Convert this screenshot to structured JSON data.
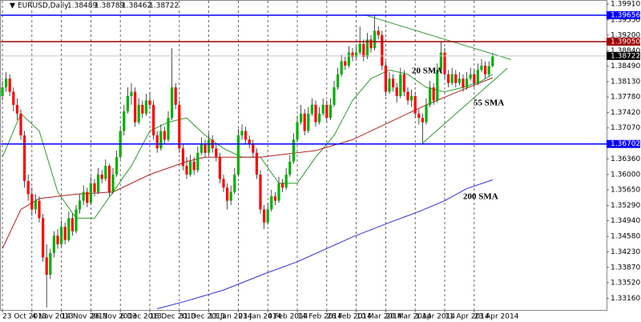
{
  "chart_data": {
    "type": "candlestick",
    "symbol": "EURUSD,Daily",
    "up_color": "#00b000",
    "down_color": "#ff0000",
    "ylim": [
      1.32893,
      1.39987
    ],
    "yticks": [
      {
        "value": 1.3991,
        "label": "1.39910"
      },
      {
        "value": 1.3955,
        "label": "1.39550"
      },
      {
        "value": 1.392,
        "label": "1.39200"
      },
      {
        "value": 1.3884,
        "label": "1.38840"
      },
      {
        "value": 1.3849,
        "label": "1.38490"
      },
      {
        "value": 1.3813,
        "label": "1.38130"
      },
      {
        "value": 1.3778,
        "label": "1.37780"
      },
      {
        "value": 1.3742,
        "label": "1.37420"
      },
      {
        "value": 1.3707,
        "label": "1.37070"
      },
      {
        "value": 1.3636,
        "label": "1.36360"
      },
      {
        "value": 1.36,
        "label": "1.36000"
      },
      {
        "value": 1.3565,
        "label": "1.35650"
      },
      {
        "value": 1.3529,
        "label": "1.35290"
      },
      {
        "value": 1.3494,
        "label": "1.34940"
      },
      {
        "value": 1.3458,
        "label": "1.34580"
      },
      {
        "value": 1.3423,
        "label": "1.34230"
      },
      {
        "value": 1.3387,
        "label": "1.33870"
      },
      {
        "value": 1.3352,
        "label": "1.33520"
      },
      {
        "value": 1.3316,
        "label": "1.33160"
      }
    ],
    "xticks": [
      {
        "value": 0,
        "label": "23 Oct 2013"
      },
      {
        "value": 8,
        "label": "4 Nov 2013"
      },
      {
        "value": 16,
        "label": "14 Nov 2013"
      },
      {
        "value": 24,
        "label": "26 Nov 2013"
      },
      {
        "value": 32,
        "label": "6 Dec 2013"
      },
      {
        "value": 40,
        "label": "18 Dec 2013"
      },
      {
        "value": 48,
        "label": "31 Dec 2013"
      },
      {
        "value": 56,
        "label": "13 Jan 2014"
      },
      {
        "value": 64,
        "label": "23 Jan 2014"
      },
      {
        "value": 72,
        "label": "4 Feb 2014"
      },
      {
        "value": 80,
        "label": "14 Feb 2014"
      },
      {
        "value": 88,
        "label": "26 Feb 2014"
      },
      {
        "value": 96,
        "label": "10 Mar 2014"
      },
      {
        "value": 104,
        "label": "20 Mar 2014"
      },
      {
        "value": 112,
        "label": "1 Apr 2014"
      },
      {
        "value": 120,
        "label": "11 Apr 2014"
      },
      {
        "value": 128,
        "label": "23 Apr 2014"
      }
    ],
    "ohlc": [
      [
        1.378,
        1.3815,
        1.377,
        1.38
      ],
      [
        1.38,
        1.3835,
        1.379,
        1.382
      ],
      [
        1.382,
        1.383,
        1.378,
        1.379
      ],
      [
        1.379,
        1.38,
        1.3745,
        1.376
      ],
      [
        1.376,
        1.3775,
        1.3725,
        1.374
      ],
      [
        1.374,
        1.375,
        1.368,
        1.369
      ],
      [
        1.369,
        1.37,
        1.357,
        1.3585
      ],
      [
        1.3585,
        1.36,
        1.354,
        1.3555
      ],
      [
        1.3555,
        1.357,
        1.3505,
        1.352
      ],
      [
        1.352,
        1.3555,
        1.351,
        1.354
      ],
      [
        1.354,
        1.355,
        1.349,
        1.35
      ],
      [
        1.35,
        1.351,
        1.34,
        1.341
      ],
      [
        1.341,
        1.344,
        1.3295,
        1.337
      ],
      [
        1.337,
        1.343,
        1.336,
        1.342
      ],
      [
        1.342,
        1.347,
        1.341,
        1.346
      ],
      [
        1.346,
        1.3475,
        1.343,
        1.344
      ],
      [
        1.344,
        1.3495,
        1.3435,
        1.348
      ],
      [
        1.348,
        1.349,
        1.344,
        1.345
      ],
      [
        1.345,
        1.3515,
        1.3445,
        1.35
      ],
      [
        1.35,
        1.351,
        1.346,
        1.347
      ],
      [
        1.347,
        1.353,
        1.3465,
        1.352
      ],
      [
        1.352,
        1.3555,
        1.351,
        1.354
      ],
      [
        1.354,
        1.3575,
        1.353,
        1.356
      ],
      [
        1.356,
        1.357,
        1.3525,
        1.3535
      ],
      [
        1.3535,
        1.3595,
        1.353,
        1.358
      ],
      [
        1.358,
        1.359,
        1.355,
        1.356
      ],
      [
        1.356,
        1.3615,
        1.3555,
        1.36
      ],
      [
        1.36,
        1.361,
        1.358,
        1.359
      ],
      [
        1.359,
        1.3635,
        1.3585,
        1.362
      ],
      [
        1.362,
        1.3625,
        1.355,
        1.356
      ],
      [
        1.356,
        1.3615,
        1.3555,
        1.36
      ],
      [
        1.36,
        1.3655,
        1.3595,
        1.364
      ],
      [
        1.364,
        1.371,
        1.3635,
        1.37
      ],
      [
        1.37,
        1.376,
        1.369,
        1.3745
      ],
      [
        1.3745,
        1.38,
        1.374,
        1.378
      ],
      [
        1.378,
        1.381,
        1.376,
        1.379
      ],
      [
        1.379,
        1.38,
        1.371,
        1.372
      ],
      [
        1.372,
        1.3775,
        1.3715,
        1.376
      ],
      [
        1.376,
        1.377,
        1.373,
        1.374
      ],
      [
        1.374,
        1.3785,
        1.3735,
        1.377
      ],
      [
        1.377,
        1.379,
        1.375,
        1.376
      ],
      [
        1.376,
        1.377,
        1.368,
        1.369
      ],
      [
        1.369,
        1.37,
        1.365,
        1.366
      ],
      [
        1.366,
        1.3715,
        1.3655,
        1.37
      ],
      [
        1.37,
        1.371,
        1.367,
        1.368
      ],
      [
        1.368,
        1.3745,
        1.3675,
        1.373
      ],
      [
        1.373,
        1.389,
        1.3725,
        1.38
      ],
      [
        1.38,
        1.381,
        1.375,
        1.376
      ],
      [
        1.376,
        1.377,
        1.365,
        1.366
      ],
      [
        1.366,
        1.367,
        1.361,
        1.362
      ],
      [
        1.362,
        1.364,
        1.359,
        1.36
      ],
      [
        1.36,
        1.3645,
        1.3595,
        1.363
      ],
      [
        1.363,
        1.364,
        1.36,
        1.361
      ],
      [
        1.361,
        1.3665,
        1.3605,
        1.365
      ],
      [
        1.365,
        1.3685,
        1.3645,
        1.367
      ],
      [
        1.367,
        1.368,
        1.364,
        1.365
      ],
      [
        1.365,
        1.3695,
        1.3645,
        1.368
      ],
      [
        1.368,
        1.369,
        1.365,
        1.366
      ],
      [
        1.366,
        1.367,
        1.363,
        1.364
      ],
      [
        1.364,
        1.365,
        1.358,
        1.359
      ],
      [
        1.359,
        1.36,
        1.356,
        1.357
      ],
      [
        1.357,
        1.358,
        1.352,
        1.354
      ],
      [
        1.354,
        1.3575,
        1.353,
        1.356
      ],
      [
        1.356,
        1.3615,
        1.3555,
        1.36
      ],
      [
        1.36,
        1.3705,
        1.3595,
        1.369
      ],
      [
        1.369,
        1.3715,
        1.368,
        1.37
      ],
      [
        1.37,
        1.371,
        1.367,
        1.368
      ],
      [
        1.368,
        1.369,
        1.366,
        1.367
      ],
      [
        1.367,
        1.368,
        1.364,
        1.365
      ],
      [
        1.365,
        1.366,
        1.359,
        1.36
      ],
      [
        1.36,
        1.361,
        1.351,
        1.352
      ],
      [
        1.352,
        1.353,
        1.3475,
        1.349
      ],
      [
        1.349,
        1.3535,
        1.3485,
        1.352
      ],
      [
        1.352,
        1.3565,
        1.3515,
        1.355
      ],
      [
        1.355,
        1.356,
        1.353,
        1.354
      ],
      [
        1.354,
        1.3595,
        1.3535,
        1.358
      ],
      [
        1.358,
        1.359,
        1.356,
        1.357
      ],
      [
        1.357,
        1.3615,
        1.3565,
        1.36
      ],
      [
        1.36,
        1.3645,
        1.3595,
        1.363
      ],
      [
        1.363,
        1.3695,
        1.3625,
        1.368
      ],
      [
        1.368,
        1.3735,
        1.3675,
        1.372
      ],
      [
        1.372,
        1.376,
        1.3715,
        1.374
      ],
      [
        1.374,
        1.375,
        1.369,
        1.37
      ],
      [
        1.37,
        1.3755,
        1.3695,
        1.374
      ],
      [
        1.374,
        1.3775,
        1.3735,
        1.376
      ],
      [
        1.376,
        1.377,
        1.371,
        1.372
      ],
      [
        1.372,
        1.3755,
        1.3715,
        1.374
      ],
      [
        1.374,
        1.3775,
        1.3735,
        1.376
      ],
      [
        1.376,
        1.377,
        1.372,
        1.373
      ],
      [
        1.373,
        1.3775,
        1.3725,
        1.376
      ],
      [
        1.376,
        1.3815,
        1.3755,
        1.38
      ],
      [
        1.38,
        1.3845,
        1.3795,
        1.383
      ],
      [
        1.383,
        1.3875,
        1.3825,
        1.386
      ],
      [
        1.386,
        1.387,
        1.384,
        1.385
      ],
      [
        1.385,
        1.3895,
        1.3845,
        1.388
      ],
      [
        1.388,
        1.389,
        1.386,
        1.387
      ],
      [
        1.387,
        1.3895,
        1.3865,
        1.388
      ],
      [
        1.388,
        1.394,
        1.3875,
        1.39
      ],
      [
        1.39,
        1.391,
        1.386,
        1.387
      ],
      [
        1.387,
        1.3925,
        1.3865,
        1.391
      ],
      [
        1.391,
        1.392,
        1.388,
        1.389
      ],
      [
        1.389,
        1.3967,
        1.3885,
        1.393
      ],
      [
        1.393,
        1.394,
        1.391,
        1.392
      ],
      [
        1.392,
        1.393,
        1.384,
        1.385
      ],
      [
        1.385,
        1.386,
        1.378,
        1.379
      ],
      [
        1.379,
        1.3835,
        1.3785,
        1.382
      ],
      [
        1.382,
        1.383,
        1.379,
        1.38
      ],
      [
        1.38,
        1.381,
        1.3765,
        1.378
      ],
      [
        1.378,
        1.3845,
        1.3775,
        1.383
      ],
      [
        1.383,
        1.384,
        1.378,
        1.379
      ],
      [
        1.379,
        1.38,
        1.376,
        1.377
      ],
      [
        1.377,
        1.3795,
        1.3755,
        1.378
      ],
      [
        1.378,
        1.379,
        1.373,
        1.374
      ],
      [
        1.374,
        1.375,
        1.3715,
        1.373
      ],
      [
        1.373,
        1.374,
        1.3672,
        1.372
      ],
      [
        1.372,
        1.3775,
        1.3715,
        1.376
      ],
      [
        1.376,
        1.3815,
        1.3755,
        1.38
      ],
      [
        1.38,
        1.381,
        1.376,
        1.377
      ],
      [
        1.377,
        1.3855,
        1.3765,
        1.384
      ],
      [
        1.384,
        1.3905,
        1.3835,
        1.388
      ],
      [
        1.388,
        1.389,
        1.382,
        1.383
      ],
      [
        1.383,
        1.384,
        1.38,
        1.381
      ],
      [
        1.381,
        1.3845,
        1.3805,
        1.383
      ],
      [
        1.383,
        1.384,
        1.38,
        1.381
      ],
      [
        1.381,
        1.3835,
        1.3805,
        1.382
      ],
      [
        1.382,
        1.383,
        1.379,
        1.38
      ],
      [
        1.38,
        1.3835,
        1.3795,
        1.382
      ],
      [
        1.382,
        1.3845,
        1.3815,
        1.383
      ],
      [
        1.383,
        1.384,
        1.38,
        1.381
      ],
      [
        1.381,
        1.3855,
        1.3805,
        1.384
      ],
      [
        1.384,
        1.3865,
        1.3835,
        1.385
      ],
      [
        1.385,
        1.386,
        1.382,
        1.383
      ],
      [
        1.383,
        1.386,
        1.3825,
        1.3849
      ],
      [
        1.38489,
        1.38789,
        1.38462,
        1.38722
      ]
    ],
    "series": [
      {
        "name": "20 SMA",
        "color": "#2e9a2e",
        "x": [
          0,
          5,
          10,
          15,
          20,
          25,
          30,
          35,
          40,
          45,
          50,
          55,
          60,
          65,
          70,
          75,
          80,
          85,
          90,
          95,
          100,
          105,
          110,
          115,
          120,
          125,
          130,
          133
        ],
        "values": [
          1.364,
          1.374,
          1.37,
          1.356,
          1.35,
          1.35,
          1.356,
          1.362,
          1.37,
          1.372,
          1.373,
          1.369,
          1.366,
          1.364,
          1.364,
          1.358,
          1.358,
          1.364,
          1.369,
          1.377,
          1.382,
          1.384,
          1.383,
          1.38,
          1.379,
          1.38,
          1.3815,
          1.383
        ]
      },
      {
        "name": "55 SMA",
        "color": "#b22222",
        "x": [
          0,
          5,
          10,
          20,
          30,
          40,
          50,
          55,
          70,
          85,
          95,
          105,
          115,
          125,
          133
        ],
        "values": [
          1.343,
          1.352,
          1.3545,
          1.3555,
          1.356,
          1.36,
          1.363,
          1.364,
          1.364,
          1.3655,
          1.368,
          1.372,
          1.376,
          1.3795,
          1.3822
        ]
      },
      {
        "name": "200 SMA",
        "color": "#2f2fd8",
        "x": [
          42,
          50,
          60,
          71,
          80,
          95,
          105,
          113,
          120,
          126,
          133
        ],
        "values": [
          1.3292,
          1.331,
          1.3335,
          1.3372,
          1.34,
          1.3457,
          1.349,
          1.3515,
          1.354,
          1.3568,
          1.3588
        ]
      }
    ],
    "trendlines": [
      {
        "color": "#2e9a2e",
        "x": [
          98,
          138
        ],
        "values": [
          1.3967,
          1.3864
        ]
      },
      {
        "color": "#2e9a2e",
        "x": [
          114,
          137
        ],
        "values": [
          1.3672,
          1.3844
        ]
      }
    ],
    "levels": [
      {
        "value": 1.39656,
        "label": "1.39656",
        "color": "#0000ff"
      },
      {
        "value": 1.3905,
        "label": "1.39050",
        "color": "#a00000"
      },
      {
        "value": 1.36702,
        "label": "1.36702",
        "color": "#0000ff"
      },
      {
        "value": 1.38722,
        "label": "1.38722",
        "color": "#c8c8c8"
      }
    ]
  }
}
